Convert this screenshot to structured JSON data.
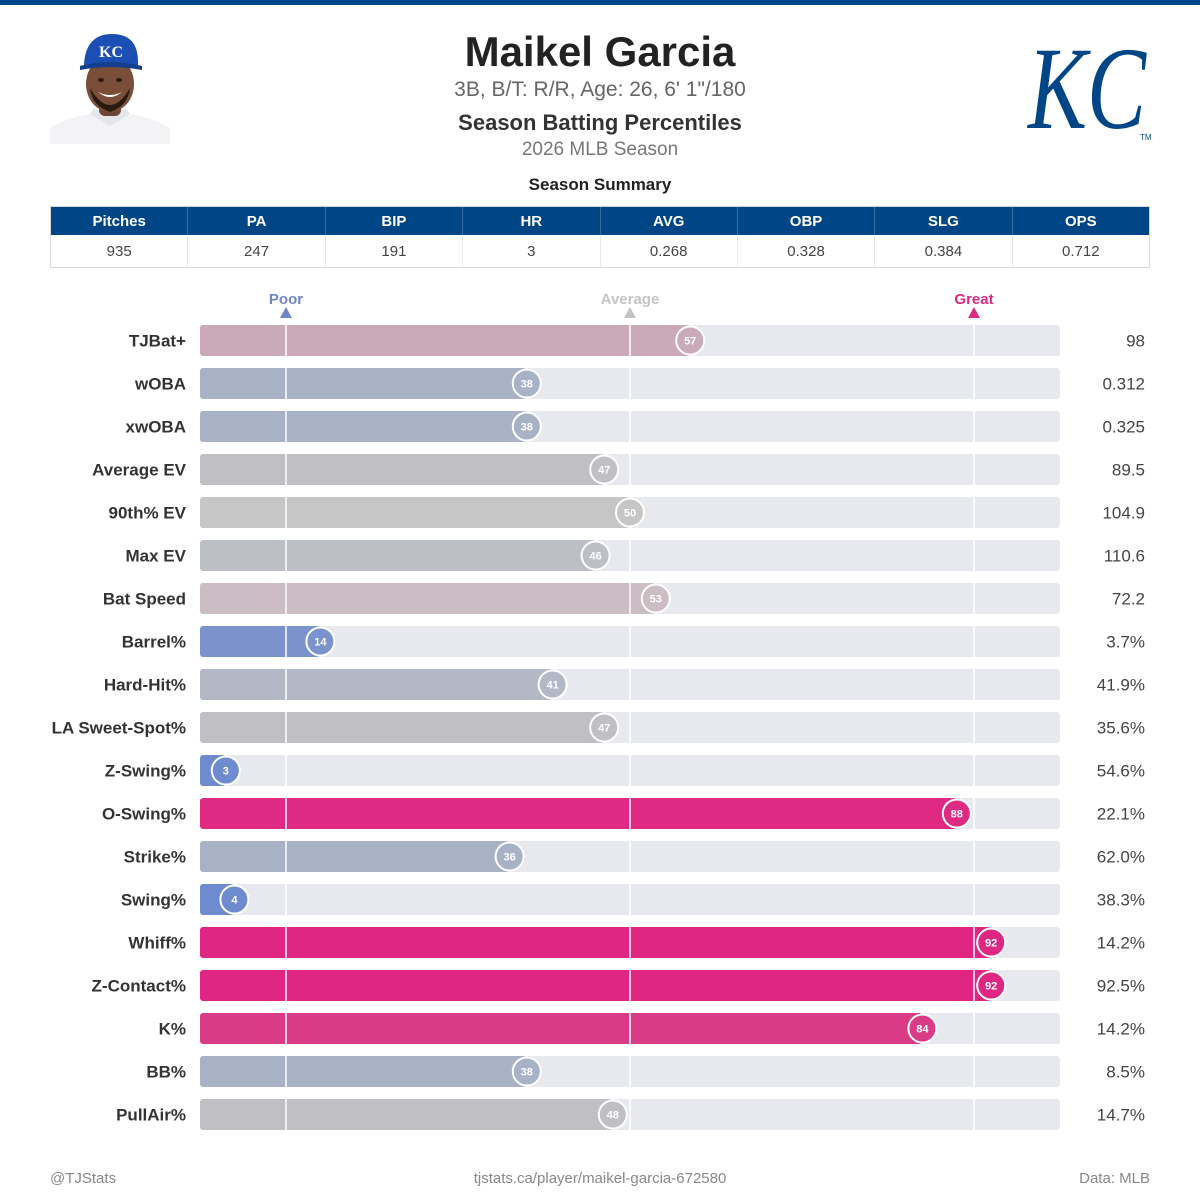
{
  "player": {
    "name": "Maikel Garcia",
    "bio": "3B, B/T: R/R, Age: 26, 6' 1\"/180",
    "subtitle": "Season Batting Percentiles",
    "season": "2026 MLB Season",
    "logo_text": "KC",
    "logo_tm": "TM"
  },
  "summary": {
    "title": "Season Summary",
    "headers": [
      "Pitches",
      "PA",
      "BIP",
      "HR",
      "AVG",
      "OBP",
      "SLG",
      "OPS"
    ],
    "values": [
      "935",
      "247",
      "191",
      "3",
      "0.268",
      "0.328",
      "0.384",
      "0.712"
    ]
  },
  "chart_data": {
    "type": "bar",
    "orientation": "horizontal",
    "xlim": [
      0,
      100
    ],
    "reference_markers": [
      {
        "label": "Poor",
        "value": 10,
        "color": "#6d86c4"
      },
      {
        "label": "Average",
        "value": 50,
        "color": "#c4c4c4"
      },
      {
        "label": "Great",
        "value": 90,
        "color": "#de2a82"
      }
    ],
    "categories": [
      "TJBat+",
      "wOBA",
      "xwOBA",
      "Average EV",
      "90th% EV",
      "Max EV",
      "Bat Speed",
      "Barrel%",
      "Hard-Hit%",
      "LA Sweet-Spot%",
      "Z-Swing%",
      "O-Swing%",
      "Strike%",
      "Swing%",
      "Whiff%",
      "Z-Contact%",
      "K%",
      "BB%",
      "PullAir%"
    ],
    "percentiles": [
      57,
      38,
      38,
      47,
      50,
      46,
      53,
      14,
      41,
      47,
      3,
      88,
      36,
      4,
      92,
      92,
      84,
      38,
      48
    ],
    "stat_values": [
      "98",
      "0.312",
      "0.325",
      "89.5",
      "104.9",
      "110.6",
      "72.2",
      "3.7%",
      "41.9%",
      "35.6%",
      "54.6%",
      "22.1%",
      "62.0%",
      "38.3%",
      "14.2%",
      "92.5%",
      "14.2%",
      "8.5%",
      "14.7%"
    ],
    "colors": [
      "#caa9b9",
      "#a8b2c6",
      "#a8b2c6",
      "#c0c0c4",
      "#c6c6c6",
      "#bdbfc6",
      "#cbbdc3",
      "#7a93cc",
      "#b3b8c6",
      "#c0c0c4",
      "#6f8bd0",
      "#de2a82",
      "#a8b2c6",
      "#6f8bd0",
      "#de2682",
      "#de2682",
      "#d93b87",
      "#a8b2c6",
      "#c0c0c4"
    ]
  },
  "footer": {
    "left": "@TJStats",
    "center": "tjstats.ca/player/maikel-garcia-672580",
    "right": "Data: MLB"
  }
}
